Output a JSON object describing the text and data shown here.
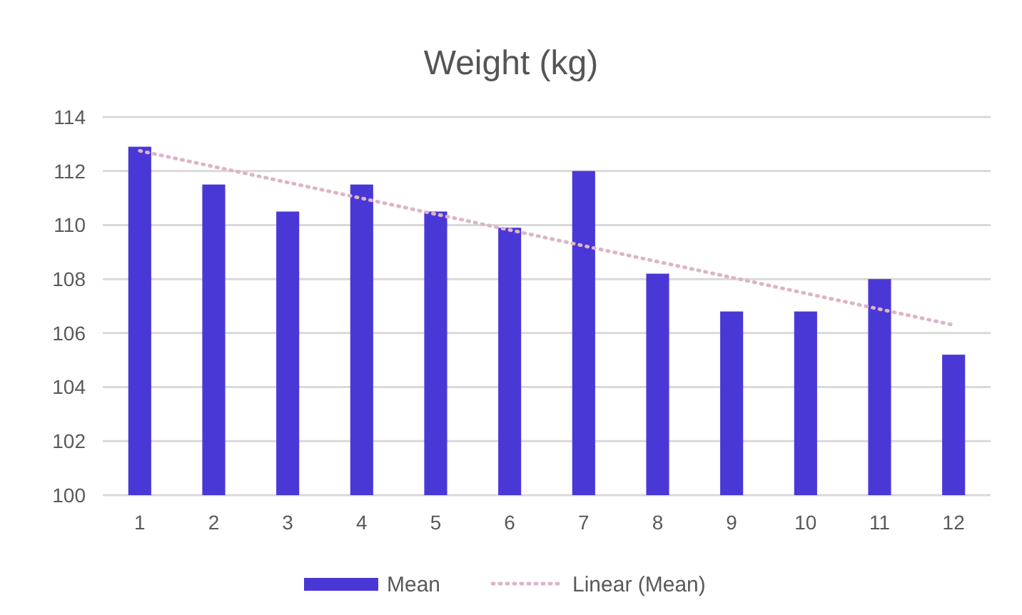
{
  "chart_data": {
    "type": "bar",
    "title": "Weight (kg)",
    "x": [
      1,
      2,
      3,
      4,
      5,
      6,
      7,
      8,
      9,
      10,
      11,
      12
    ],
    "series": [
      {
        "name": "Mean",
        "color": "#4a38d6",
        "values": [
          112.9,
          111.5,
          110.5,
          111.5,
          110.5,
          109.9,
          112.0,
          108.2,
          106.8,
          106.8,
          108.0,
          105.2
        ]
      },
      {
        "name": "Linear (Mean)",
        "type": "line",
        "color": "#dcb4c8",
        "line_style": "dotted",
        "x": [
          1,
          12
        ],
        "values": [
          112.75,
          106.3
        ]
      }
    ],
    "xlim": [
      0.5,
      12.5
    ],
    "xticks": [
      1,
      2,
      3,
      4,
      5,
      6,
      7,
      8,
      9,
      10,
      11,
      12
    ],
    "ylim": [
      100,
      114
    ],
    "yticks": [
      100,
      102,
      104,
      106,
      108,
      110,
      112,
      114
    ],
    "grid": "y",
    "legend": "bottom"
  }
}
